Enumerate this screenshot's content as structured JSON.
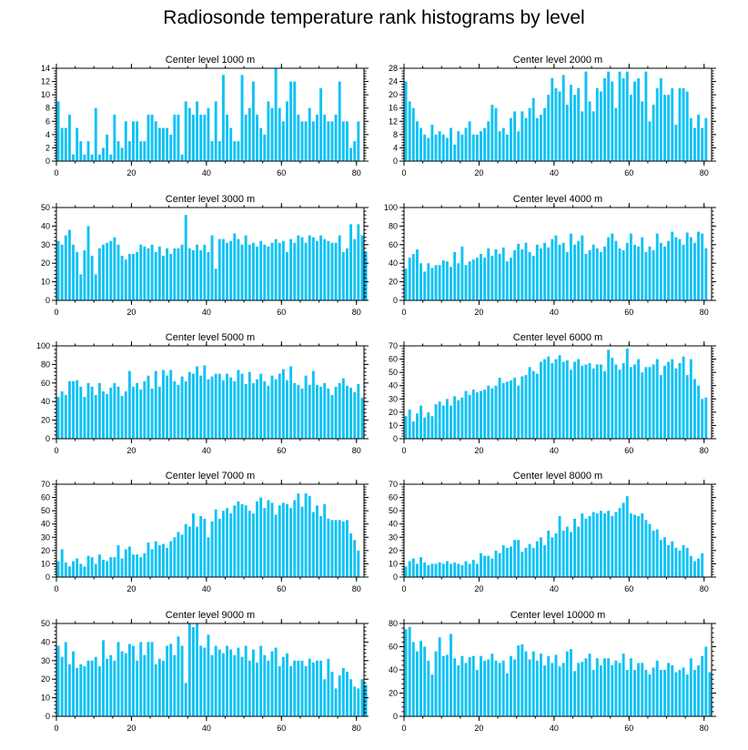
{
  "title": "Radiosonde temperature rank histograms by level",
  "colors": {
    "bar": "#11c2f4",
    "axis": "#000000"
  },
  "chart_data": [
    {
      "type": "bar",
      "title": "Center level 1000 m",
      "xlim": [
        0,
        82
      ],
      "ylim": [
        0,
        14
      ],
      "xticks": [
        0,
        20,
        40,
        60,
        80
      ],
      "yticks": [
        0,
        2,
        4,
        6,
        8,
        10,
        12,
        14
      ],
      "values": [
        9,
        5,
        5,
        7,
        1,
        5,
        3,
        1,
        3,
        1,
        8,
        1,
        2,
        4,
        1,
        7,
        3,
        2,
        6,
        3,
        6,
        6,
        3,
        3,
        7,
        7,
        6,
        5,
        5,
        5,
        4,
        7,
        7,
        1,
        9,
        8,
        7,
        9,
        7,
        7,
        8,
        3,
        9,
        3,
        13,
        7,
        5,
        3,
        3,
        13,
        7,
        8,
        12,
        7,
        5,
        4,
        9,
        8,
        14,
        8,
        6,
        9,
        12,
        12,
        7,
        6,
        6,
        8,
        6,
        7,
        11,
        7,
        6,
        6,
        7,
        12,
        6,
        6,
        2,
        3,
        6
      ]
    },
    {
      "type": "bar",
      "title": "Center level 2000 m",
      "xlim": [
        0,
        82
      ],
      "ylim": [
        0,
        28
      ],
      "xticks": [
        0,
        20,
        40,
        60,
        80
      ],
      "yticks": [
        0,
        4,
        8,
        12,
        16,
        20,
        24,
        28
      ],
      "values": [
        24,
        18,
        16,
        12,
        10,
        8,
        7,
        11,
        8,
        9,
        8,
        7,
        10,
        5,
        9,
        8,
        10,
        12,
        8,
        8,
        9,
        10,
        12,
        17,
        16,
        9,
        10,
        8,
        13,
        15,
        9,
        15,
        13,
        16,
        19,
        13,
        14,
        16,
        20,
        25,
        22,
        21,
        26,
        17,
        23,
        20,
        22,
        15,
        27,
        18,
        15,
        22,
        21,
        25,
        27,
        24,
        16,
        27,
        25,
        27,
        20,
        24,
        25,
        18,
        27,
        12,
        17,
        22,
        25,
        20,
        20,
        22,
        11,
        22,
        22,
        21,
        13,
        10,
        14,
        10,
        13
      ]
    },
    {
      "type": "bar",
      "title": "Center level 3000 m",
      "xlim": [
        0,
        82
      ],
      "ylim": [
        0,
        50
      ],
      "xticks": [
        0,
        20,
        40,
        60,
        80
      ],
      "yticks": [
        0,
        10,
        20,
        30,
        40,
        50
      ],
      "values": [
        32,
        30,
        35,
        38,
        30,
        26,
        14,
        27,
        40,
        24,
        14,
        28,
        30,
        31,
        32,
        34,
        30,
        24,
        22,
        25,
        25,
        26,
        30,
        29,
        28,
        30,
        26,
        29,
        24,
        28,
        25,
        28,
        28,
        30,
        46,
        28,
        27,
        30,
        27,
        30,
        26,
        35,
        17,
        33,
        33,
        31,
        32,
        36,
        33,
        30,
        35,
        30,
        31,
        29,
        32,
        30,
        29,
        31,
        33,
        31,
        32,
        26,
        33,
        31,
        35,
        34,
        31,
        35,
        34,
        32,
        35,
        33,
        32,
        31,
        31,
        35,
        26,
        28,
        41,
        33,
        41,
        35,
        26
      ]
    },
    {
      "type": "bar",
      "title": "Center level 4000 m",
      "xlim": [
        0,
        82
      ],
      "ylim": [
        0,
        100
      ],
      "xticks": [
        0,
        20,
        40,
        60,
        80
      ],
      "yticks": [
        0,
        20,
        40,
        60,
        80,
        100
      ],
      "values": [
        34,
        46,
        50,
        55,
        40,
        31,
        40,
        35,
        38,
        38,
        43,
        42,
        36,
        52,
        40,
        58,
        38,
        42,
        44,
        46,
        50,
        46,
        56,
        48,
        55,
        50,
        57,
        42,
        46,
        54,
        61,
        55,
        62,
        52,
        48,
        60,
        56,
        62,
        57,
        66,
        70,
        60,
        62,
        52,
        72,
        60,
        64,
        70,
        50,
        54,
        60,
        56,
        52,
        58,
        68,
        72,
        64,
        56,
        54,
        62,
        72,
        60,
        58,
        68,
        52,
        58,
        54,
        72,
        62,
        58,
        64,
        74,
        68,
        66,
        60,
        73,
        68,
        62,
        74,
        72,
        56
      ]
    },
    {
      "type": "bar",
      "title": "Center level 5000 m",
      "xlim": [
        0,
        82
      ],
      "ylim": [
        0,
        100
      ],
      "xticks": [
        0,
        20,
        40,
        60,
        80
      ],
      "yticks": [
        0,
        20,
        40,
        60,
        80,
        100
      ],
      "values": [
        45,
        51,
        47,
        62,
        62,
        63,
        56,
        45,
        60,
        56,
        47,
        60,
        51,
        48,
        55,
        60,
        56,
        46,
        51,
        73,
        56,
        60,
        53,
        62,
        68,
        54,
        73,
        56,
        74,
        68,
        74,
        62,
        58,
        67,
        62,
        72,
        70,
        78,
        68,
        79,
        64,
        67,
        70,
        70,
        63,
        70,
        66,
        62,
        74,
        70,
        59,
        72,
        60,
        64,
        70,
        62,
        57,
        68,
        64,
        70,
        75,
        63,
        78,
        60,
        58,
        54,
        68,
        58,
        73,
        58,
        56,
        60,
        54,
        47,
        56,
        60,
        65,
        57,
        55,
        50,
        59,
        44
      ]
    },
    {
      "type": "bar",
      "title": "Center level 6000 m",
      "xlim": [
        0,
        82
      ],
      "ylim": [
        0,
        70
      ],
      "xticks": [
        0,
        20,
        40,
        60,
        80
      ],
      "yticks": [
        0,
        10,
        20,
        30,
        40,
        50,
        60,
        70
      ],
      "values": [
        17,
        22,
        13,
        19,
        25,
        16,
        20,
        17,
        26,
        28,
        25,
        30,
        25,
        32,
        29,
        31,
        36,
        33,
        37,
        35,
        36,
        37,
        40,
        38,
        40,
        46,
        42,
        43,
        44,
        46,
        40,
        47,
        48,
        54,
        51,
        49,
        58,
        60,
        62,
        57,
        60,
        63,
        58,
        59,
        52,
        58,
        60,
        55,
        56,
        57,
        53,
        56,
        56,
        51,
        67,
        61,
        56,
        52,
        57,
        68,
        54,
        56,
        60,
        50,
        54,
        54,
        56,
        60,
        48,
        55,
        58,
        60,
        53,
        57,
        62,
        48,
        60,
        45,
        40,
        30,
        31
      ]
    },
    {
      "type": "bar",
      "title": "Center level 7000 m",
      "xlim": [
        0,
        82
      ],
      "ylim": [
        0,
        70
      ],
      "xticks": [
        0,
        20,
        40,
        60,
        80
      ],
      "yticks": [
        0,
        10,
        20,
        30,
        40,
        50,
        60,
        70
      ],
      "values": [
        12,
        21,
        11,
        8,
        12,
        14,
        10,
        8,
        16,
        15,
        10,
        17,
        13,
        12,
        15,
        15,
        24,
        14,
        21,
        23,
        17,
        17,
        15,
        18,
        26,
        21,
        27,
        24,
        25,
        22,
        27,
        30,
        34,
        32,
        40,
        38,
        48,
        38,
        46,
        44,
        30,
        42,
        51,
        44,
        50,
        52,
        48,
        54,
        57,
        55,
        54,
        50,
        48,
        57,
        60,
        52,
        58,
        56,
        47,
        54,
        56,
        55,
        52,
        58,
        63,
        53,
        63,
        61,
        49,
        54,
        46,
        55,
        44,
        43,
        43,
        43,
        42,
        43,
        33,
        28,
        20
      ]
    },
    {
      "type": "bar",
      "title": "Center level 8000 m",
      "xlim": [
        0,
        82
      ],
      "ylim": [
        0,
        70
      ],
      "xticks": [
        0,
        20,
        40,
        60,
        80
      ],
      "yticks": [
        0,
        10,
        20,
        30,
        40,
        50,
        60,
        70
      ],
      "values": [
        8,
        12,
        14,
        10,
        15,
        11,
        9,
        10,
        10,
        11,
        10,
        12,
        10,
        11,
        10,
        9,
        12,
        10,
        13,
        10,
        18,
        16,
        16,
        14,
        20,
        18,
        24,
        22,
        23,
        28,
        28,
        19,
        22,
        25,
        22,
        27,
        30,
        24,
        35,
        30,
        33,
        46,
        35,
        38,
        34,
        44,
        38,
        48,
        44,
        46,
        49,
        48,
        50,
        48,
        50,
        46,
        49,
        52,
        56,
        61,
        48,
        47,
        46,
        48,
        43,
        40,
        35,
        36,
        28,
        30,
        24,
        27,
        22,
        20,
        24,
        22,
        16,
        12,
        14,
        18
      ]
    },
    {
      "type": "bar",
      "title": "Center level 9000 m",
      "xlim": [
        0,
        82
      ],
      "ylim": [
        0,
        50
      ],
      "xticks": [
        0,
        20,
        40,
        60,
        80
      ],
      "yticks": [
        0,
        10,
        20,
        30,
        40,
        50
      ],
      "values": [
        38,
        32,
        40,
        28,
        35,
        26,
        28,
        27,
        30,
        30,
        32,
        27,
        41,
        31,
        33,
        30,
        40,
        35,
        34,
        39,
        38,
        30,
        40,
        33,
        40,
        40,
        28,
        31,
        30,
        38,
        39,
        33,
        43,
        38,
        18,
        50,
        48,
        50,
        38,
        37,
        44,
        33,
        38,
        36,
        34,
        38,
        36,
        33,
        37,
        32,
        38,
        30,
        36,
        29,
        38,
        33,
        30,
        35,
        37,
        27,
        32,
        34,
        27,
        30,
        30,
        30,
        27,
        31,
        29,
        30,
        30,
        20,
        31,
        24,
        15,
        22,
        26,
        24,
        20,
        16,
        15,
        20,
        17
      ]
    },
    {
      "type": "bar",
      "title": "Center level 10000 m",
      "xlim": [
        0,
        82
      ],
      "ylim": [
        0,
        80
      ],
      "xticks": [
        0,
        20,
        40,
        60,
        80
      ],
      "yticks": [
        0,
        20,
        40,
        60,
        80
      ],
      "values": [
        75,
        77,
        64,
        56,
        65,
        60,
        48,
        36,
        56,
        68,
        52,
        53,
        71,
        50,
        44,
        52,
        46,
        51,
        52,
        40,
        52,
        48,
        49,
        54,
        48,
        46,
        48,
        37,
        52,
        49,
        61,
        62,
        56,
        49,
        56,
        48,
        54,
        44,
        52,
        46,
        53,
        43,
        46,
        56,
        58,
        39,
        46,
        47,
        50,
        54,
        40,
        50,
        44,
        50,
        50,
        44,
        48,
        46,
        54,
        40,
        50,
        40,
        46,
        46,
        40,
        36,
        42,
        48,
        40,
        40,
        46,
        44,
        38,
        40,
        42,
        36,
        50,
        40,
        44,
        52,
        60,
        38
      ]
    }
  ]
}
